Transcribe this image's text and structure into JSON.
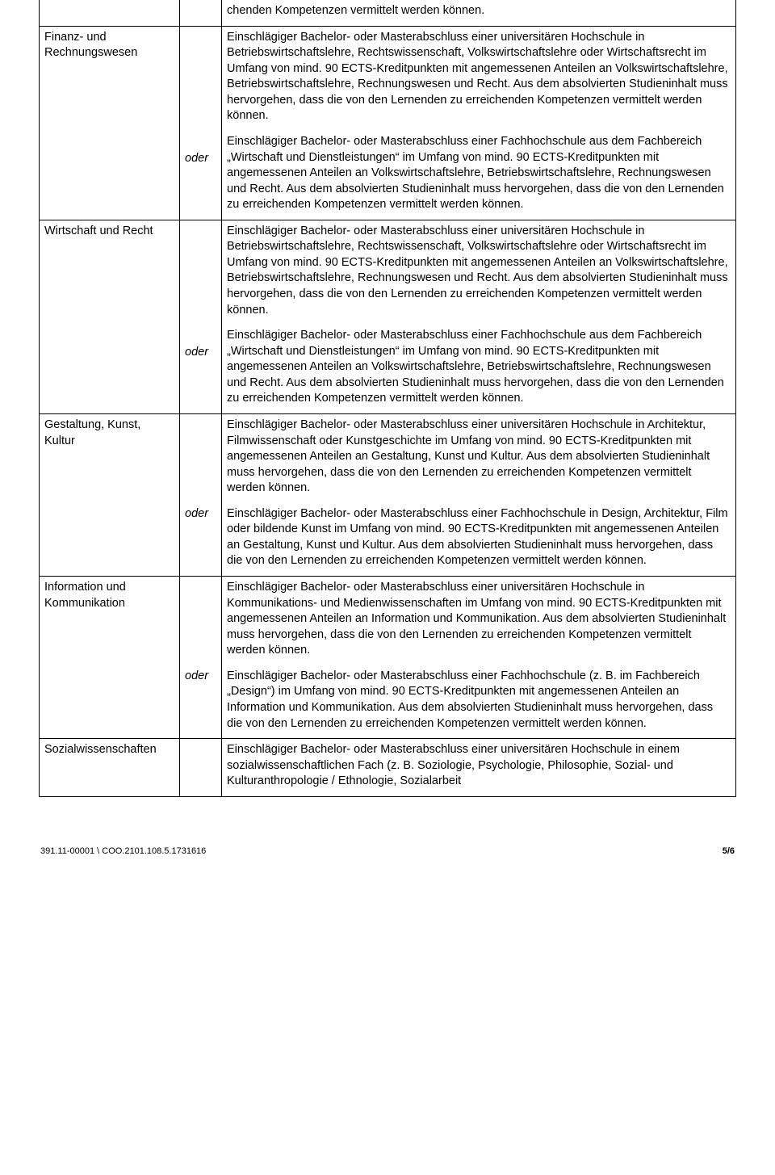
{
  "rows": [
    {
      "label": "",
      "oder": "",
      "paras": [
        "chenden Kompetenzen vermittelt werden können."
      ]
    },
    {
      "label": "Finanz- und Rechnungswesen",
      "oder": "oder",
      "paras": [
        "Einschlägiger Bachelor- oder Masterabschluss einer universitären Hochschule in Betriebswirtschaftslehre, Rechtswissenschaft, Volkswirtschaftslehre oder Wirtschaftsrecht im Umfang von mind. 90 ECTS-Kreditpunkten mit angemessenen Anteilen an Volkswirtschaftslehre, Betriebswirtschaftslehre, Rechnungswesen und Recht. Aus dem absolvierten Studieninhalt muss hervorgehen, dass die von den Lernenden zu erreichenden Kompetenzen vermittelt werden können.",
        "Einschlägiger Bachelor- oder Masterabschluss einer Fachhochschule aus dem Fachbereich „Wirtschaft und Dienstleistungen“ im Umfang von mind. 90 ECTS-Kreditpunkten mit angemessenen Anteilen an Volkswirtschaftslehre, Betriebswirtschaftslehre, Rechnungswesen und Recht. Aus dem absolvierten Studieninhalt muss hervorgehen, dass die von den Lernenden zu erreichenden Kompetenzen vermittelt werden können."
      ]
    },
    {
      "label": "Wirtschaft und Recht",
      "oder": "oder",
      "paras": [
        "Einschlägiger Bachelor- oder Masterabschluss einer universitären Hochschule in Betriebswirtschaftslehre, Rechtswissenschaft, Volkswirtschaftslehre oder Wirtschaftsrecht im Umfang von mind. 90 ECTS-Kreditpunkten mit angemessenen Anteilen an Volkswirtschaftslehre, Betriebswirtschaftslehre, Rechnungswesen und Recht. Aus dem absolvierten Studieninhalt muss hervorgehen, dass die von den Lernenden zu erreichenden Kompetenzen vermittelt werden können.",
        "Einschlägiger Bachelor- oder Masterabschluss einer Fachhochschule aus dem Fachbereich „Wirtschaft und Dienstleistungen“ im Umfang von mind. 90 ECTS-Kreditpunkten mit angemessenen Anteilen an Volkswirtschaftslehre, Betriebswirtschaftslehre, Rechnungswesen und Recht. Aus dem absolvierten Studieninhalt muss hervorgehen, dass die von den Lernenden zu erreichenden Kompetenzen vermittelt werden können."
      ]
    },
    {
      "label": "Gestaltung, Kunst, Kultur",
      "oder": "oder",
      "paras": [
        "Einschlägiger Bachelor- oder Masterabschluss einer universitären Hochschule in Architektur, Filmwissenschaft oder Kunstgeschichte im Umfang von mind. 90 ECTS-Kreditpunkten mit angemessenen Anteilen an Gestaltung, Kunst und Kultur. Aus dem absolvierten Studieninhalt muss hervorgehen, dass die von den Lernenden zu erreichenden Kompetenzen vermittelt werden können.",
        "Einschlägiger Bachelor- oder Masterabschluss einer Fachhochschule in Design, Architektur, Film oder bildende Kunst im Umfang von mind. 90 ECTS-Kreditpunkten mit angemessenen Anteilen an Gestaltung, Kunst und Kultur. Aus dem absolvierten Studieninhalt muss hervorgehen, dass die von den Lernenden zu erreichenden Kompetenzen vermittelt werden können."
      ]
    },
    {
      "label": "Information und Kommunikation",
      "oder": "oder",
      "paras": [
        "Einschlägiger Bachelor- oder Masterabschluss einer universitären Hochschule in Kommunikations- und Medienwissenschaften im Umfang von mind. 90 ECTS-Kreditpunkten mit angemessenen Anteilen an Information und Kommunikation. Aus dem absolvierten Studieninhalt muss hervorgehen, dass die von den Lernenden zu erreichenden Kompetenzen vermittelt werden können.",
        "Einschlägiger Bachelor- oder Masterabschluss einer Fachhochschule (z. B. im Fachbereich „Design“) im Umfang von mind. 90 ECTS-Kreditpunkten mit angemessenen Anteilen an Information und Kommunikation. Aus dem absolvierten Studieninhalt muss hervorgehen, dass die von den Lernenden zu erreichenden Kompetenzen vermittelt werden können."
      ]
    },
    {
      "label": "Sozialwissenschaften",
      "oder": "",
      "paras": [
        "Einschlägiger Bachelor- oder Masterabschluss einer universitären Hochschule in einem sozialwissenschaftlichen Fach (z. B. Soziologie, Psychologie, Philosophie, Sozial- und Kulturanthropologie / Ethnologie, Sozialarbeit"
      ]
    }
  ],
  "footer": {
    "left": "391.11-00001 \\ COO.2101.108.5.1731616",
    "right": "5/6"
  }
}
